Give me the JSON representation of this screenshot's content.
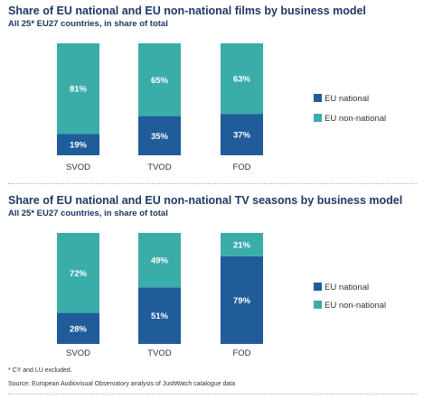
{
  "colors": {
    "eu_national": "#1f5c99",
    "eu_non_national": "#3aada8",
    "title": "#1f3864"
  },
  "footnote": "* CY and LU excluded.",
  "source": "Source: European Audiovisual Observatory analysis of JustWatch catalogue data",
  "chart_data": [
    {
      "type": "bar",
      "stacked": true,
      "title": "Share of EU national and EU non-national films by business model",
      "subtitle": "All 25* EU27 countries, in share of total",
      "categories": [
        "SVOD",
        "TVOD",
        "FOD"
      ],
      "series": [
        {
          "name": "EU national",
          "values": [
            19,
            35,
            37
          ]
        },
        {
          "name": "EU non-national",
          "values": [
            81,
            65,
            63
          ]
        }
      ],
      "ylim": [
        0,
        100
      ],
      "unit": "%",
      "legend": "right",
      "grid": false
    },
    {
      "type": "bar",
      "stacked": true,
      "title": "Share of EU national and EU non-national TV seasons by business model",
      "subtitle": "All 25* EU27 countries, in share of total",
      "categories": [
        "SVOD",
        "TVOD",
        "FOD"
      ],
      "series": [
        {
          "name": "EU national",
          "values": [
            28,
            51,
            79
          ]
        },
        {
          "name": "EU non-national",
          "values": [
            72,
            49,
            21
          ]
        }
      ],
      "ylim": [
        0,
        100
      ],
      "unit": "%",
      "legend": "right",
      "grid": false
    }
  ]
}
